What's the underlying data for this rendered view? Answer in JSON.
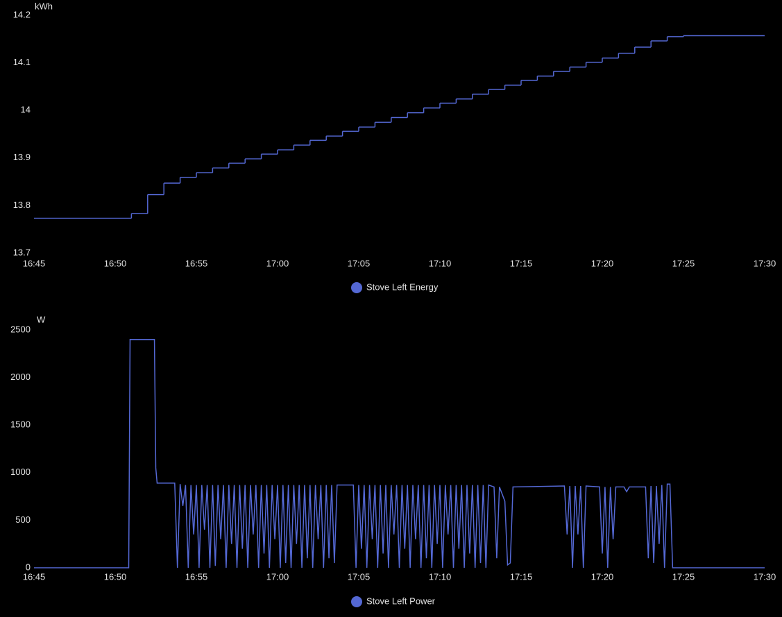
{
  "chart_data": [
    {
      "type": "step",
      "y_label": "kWh",
      "x": [
        "16:45:00",
        "16:51:00",
        "16:52:00",
        "16:53:00",
        "16:54:00",
        "16:55:00",
        "16:56:00",
        "16:57:00",
        "16:58:00",
        "16:59:00",
        "17:00:00",
        "17:01:00",
        "17:02:00",
        "17:03:00",
        "17:04:00",
        "17:05:00",
        "17:06:00",
        "17:07:00",
        "17:08:00",
        "17:09:00",
        "17:10:00",
        "17:11:00",
        "17:12:00",
        "17:13:00",
        "17:14:00",
        "17:15:00",
        "17:16:00",
        "17:17:00",
        "17:18:00",
        "17:19:00",
        "17:20:00",
        "17:21:00",
        "17:22:00",
        "17:23:00",
        "17:24:00",
        "17:25:00",
        "17:30:00"
      ],
      "series": [
        {
          "name": "Stove Left Energy",
          "color": "#5468d4",
          "values": [
            13.773,
            13.783,
            13.823,
            13.847,
            13.859,
            13.869,
            13.879,
            13.889,
            13.898,
            13.908,
            13.917,
            13.927,
            13.937,
            13.946,
            13.956,
            13.965,
            13.975,
            13.985,
            13.995,
            14.005,
            14.015,
            14.024,
            14.034,
            14.044,
            14.053,
            14.063,
            14.072,
            14.082,
            14.091,
            14.101,
            14.11,
            14.12,
            14.133,
            14.146,
            14.155,
            14.157,
            14.157
          ]
        }
      ],
      "xlim": [
        "16:45",
        "17:30"
      ],
      "xticks": [
        "16:45",
        "16:50",
        "16:55",
        "17:00",
        "17:05",
        "17:10",
        "17:15",
        "17:20",
        "17:25",
        "17:30"
      ],
      "ylim": [
        13.7,
        14.2
      ],
      "yticks": [
        13.7,
        13.8,
        13.9,
        14,
        14.1,
        14.2
      ]
    },
    {
      "type": "line",
      "y_label": "W",
      "x": [
        "16:45:00",
        "16:50:50",
        "16:50:55",
        "16:52:25",
        "16:52:30",
        "16:52:35",
        "16:53:40",
        "16:53:50",
        "16:54:00",
        "16:54:10",
        "16:54:20",
        "16:54:30",
        "16:54:40",
        "16:54:50",
        "16:55:00",
        "16:55:10",
        "16:55:20",
        "16:55:30",
        "16:55:40",
        "16:55:50",
        "16:56:00",
        "16:56:10",
        "16:56:20",
        "16:56:30",
        "16:56:40",
        "16:56:50",
        "16:57:00",
        "16:57:10",
        "16:57:20",
        "16:57:30",
        "16:57:40",
        "16:57:50",
        "16:58:00",
        "16:58:10",
        "16:58:20",
        "16:58:30",
        "16:58:40",
        "16:58:50",
        "16:59:00",
        "16:59:10",
        "16:59:20",
        "16:59:30",
        "16:59:40",
        "16:59:50",
        "17:00:00",
        "17:00:10",
        "17:00:20",
        "17:00:30",
        "17:00:40",
        "17:00:50",
        "17:01:00",
        "17:01:10",
        "17:01:20",
        "17:01:30",
        "17:01:40",
        "17:01:50",
        "17:02:00",
        "17:02:10",
        "17:02:20",
        "17:02:30",
        "17:02:40",
        "17:02:50",
        "17:03:00",
        "17:03:10",
        "17:03:20",
        "17:03:30",
        "17:03:40",
        "17:04:40",
        "17:04:50",
        "17:05:00",
        "17:05:10",
        "17:05:20",
        "17:05:30",
        "17:05:40",
        "17:05:50",
        "17:06:00",
        "17:06:10",
        "17:06:20",
        "17:06:30",
        "17:06:40",
        "17:06:50",
        "17:07:00",
        "17:07:10",
        "17:07:20",
        "17:07:30",
        "17:07:40",
        "17:07:50",
        "17:08:00",
        "17:08:10",
        "17:08:20",
        "17:08:30",
        "17:08:40",
        "17:08:50",
        "17:09:00",
        "17:09:10",
        "17:09:20",
        "17:09:30",
        "17:09:40",
        "17:09:50",
        "17:10:00",
        "17:10:10",
        "17:10:20",
        "17:10:30",
        "17:10:40",
        "17:10:50",
        "17:11:00",
        "17:11:10",
        "17:11:20",
        "17:11:30",
        "17:11:40",
        "17:11:50",
        "17:12:00",
        "17:12:10",
        "17:12:20",
        "17:12:30",
        "17:12:40",
        "17:12:50",
        "17:13:00",
        "17:13:20",
        "17:13:30",
        "17:13:40",
        "17:14:00",
        "17:14:10",
        "17:14:20",
        "17:14:30",
        "17:17:40",
        "17:17:50",
        "17:18:00",
        "17:18:10",
        "17:18:20",
        "17:18:30",
        "17:18:40",
        "17:18:50",
        "17:19:00",
        "17:19:50",
        "17:20:00",
        "17:20:10",
        "17:20:20",
        "17:20:30",
        "17:20:40",
        "17:20:50",
        "17:21:20",
        "17:21:30",
        "17:21:40",
        "17:22:40",
        "17:22:50",
        "17:23:00",
        "17:23:10",
        "17:23:20",
        "17:23:30",
        "17:23:40",
        "17:23:50",
        "17:24:00",
        "17:24:10",
        "17:24:20",
        "17:30:00"
      ],
      "series": [
        {
          "name": "Stove Left Power",
          "color": "#5468d4",
          "values": [
            0,
            0,
            2400,
            2400,
            1050,
            890,
            890,
            0,
            880,
            650,
            870,
            0,
            870,
            350,
            870,
            0,
            870,
            400,
            870,
            0,
            870,
            20,
            870,
            300,
            870,
            0,
            870,
            250,
            870,
            0,
            870,
            200,
            870,
            0,
            870,
            350,
            870,
            0,
            870,
            150,
            870,
            0,
            870,
            300,
            870,
            0,
            870,
            50,
            870,
            0,
            870,
            250,
            870,
            0,
            870,
            100,
            870,
            0,
            870,
            300,
            870,
            0,
            870,
            100,
            870,
            50,
            870,
            870,
            0,
            870,
            200,
            870,
            0,
            870,
            300,
            870,
            0,
            870,
            150,
            870,
            0,
            870,
            350,
            870,
            0,
            870,
            200,
            870,
            0,
            870,
            300,
            870,
            0,
            870,
            100,
            870,
            0,
            870,
            250,
            870,
            0,
            870,
            350,
            870,
            0,
            870,
            200,
            870,
            0,
            870,
            150,
            870,
            0,
            870,
            50,
            870,
            0,
            870,
            850,
            100,
            850,
            700,
            30,
            50,
            850,
            860,
            350,
            860,
            0,
            860,
            350,
            860,
            0,
            860,
            850,
            150,
            850,
            0,
            850,
            300,
            850,
            850,
            800,
            850,
            850,
            100,
            860,
            50,
            860,
            250,
            870,
            0,
            880,
            880,
            0,
            0
          ]
        }
      ],
      "xlim": [
        "16:45",
        "17:30"
      ],
      "xticks": [
        "16:45",
        "16:50",
        "16:55",
        "17:00",
        "17:05",
        "17:10",
        "17:15",
        "17:20",
        "17:25",
        "17:30"
      ],
      "ylim": [
        0,
        2500
      ],
      "yticks": [
        0,
        500,
        1000,
        1500,
        2000,
        2500
      ]
    }
  ]
}
